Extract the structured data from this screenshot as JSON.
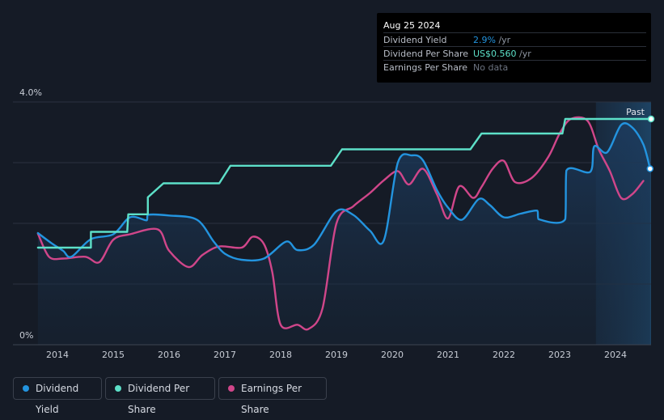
{
  "tooltip": {
    "date": "Aug 25 2024",
    "rows": [
      {
        "label": "Dividend Yield",
        "value": "2.9%",
        "unit": " /yr"
      },
      {
        "label": "Dividend Per Share",
        "value": "US$0.560",
        "unit": " /yr"
      },
      {
        "label": "Earnings Per Share",
        "value": "No data",
        "unit": ""
      }
    ]
  },
  "past_label": "Past",
  "legend": [
    {
      "label": "Dividend Yield",
      "color": "#2394df"
    },
    {
      "label": "Dividend Per Share",
      "color": "#5de0c8"
    },
    {
      "label": "Earnings Per Share",
      "color": "#d0468a"
    }
  ],
  "chart_data": {
    "type": "line",
    "xlim": [
      2013.58,
      2024.65
    ],
    "ylim": [
      0,
      4.0
    ],
    "y_tick_labels": [
      {
        "value": 4.0,
        "label": "4.0%"
      },
      {
        "value": 0,
        "label": "0%"
      }
    ],
    "x_ticks": [
      "2014",
      "2015",
      "2016",
      "2017",
      "2018",
      "2019",
      "2020",
      "2021",
      "2022",
      "2023",
      "2024"
    ],
    "forecast_start": 2023.65,
    "series": [
      {
        "name": "Dividend Yield",
        "color": "#2394df",
        "points": [
          [
            2013.65,
            1.84
          ],
          [
            2013.9,
            1.67
          ],
          [
            2014.1,
            1.55
          ],
          [
            2014.25,
            1.45
          ],
          [
            2014.6,
            1.74
          ],
          [
            2015.0,
            1.82
          ],
          [
            2015.3,
            2.1
          ],
          [
            2015.6,
            2.05
          ],
          [
            2015.62,
            2.14
          ],
          [
            2016.0,
            2.13
          ],
          [
            2016.5,
            2.06
          ],
          [
            2016.8,
            1.7
          ],
          [
            2017.0,
            1.5
          ],
          [
            2017.3,
            1.4
          ],
          [
            2017.7,
            1.42
          ],
          [
            2018.1,
            1.7
          ],
          [
            2018.3,
            1.56
          ],
          [
            2018.6,
            1.65
          ],
          [
            2019.0,
            2.2
          ],
          [
            2019.3,
            2.14
          ],
          [
            2019.6,
            1.88
          ],
          [
            2019.85,
            1.72
          ],
          [
            2020.1,
            3.0
          ],
          [
            2020.35,
            3.12
          ],
          [
            2020.55,
            3.04
          ],
          [
            2020.8,
            2.55
          ],
          [
            2021.0,
            2.26
          ],
          [
            2021.25,
            2.06
          ],
          [
            2021.55,
            2.4
          ],
          [
            2021.75,
            2.3
          ],
          [
            2022.0,
            2.1
          ],
          [
            2022.3,
            2.16
          ],
          [
            2022.6,
            2.21
          ],
          [
            2022.62,
            2.07
          ],
          [
            2023.1,
            2.07
          ],
          [
            2023.12,
            2.87
          ],
          [
            2023.55,
            2.85
          ],
          [
            2023.62,
            3.27
          ],
          [
            2023.85,
            3.17
          ],
          [
            2024.1,
            3.62
          ],
          [
            2024.3,
            3.58
          ],
          [
            2024.5,
            3.3
          ],
          [
            2024.62,
            2.9
          ]
        ]
      },
      {
        "name": "Dividend Per Share",
        "color": "#5de0c8",
        "points": [
          [
            2013.65,
            1.6
          ],
          [
            2014.6,
            1.6
          ],
          [
            2014.6,
            1.86
          ],
          [
            2015.25,
            1.86
          ],
          [
            2015.27,
            2.15
          ],
          [
            2015.62,
            2.15
          ],
          [
            2015.62,
            2.43
          ],
          [
            2015.9,
            2.66
          ],
          [
            2016.1,
            2.66
          ],
          [
            2016.9,
            2.66
          ],
          [
            2017.1,
            2.95
          ],
          [
            2017.5,
            2.95
          ],
          [
            2018.9,
            2.95
          ],
          [
            2019.1,
            3.22
          ],
          [
            2019.5,
            3.22
          ],
          [
            2021.4,
            3.22
          ],
          [
            2021.6,
            3.48
          ],
          [
            2022.0,
            3.48
          ],
          [
            2023.05,
            3.48
          ],
          [
            2023.1,
            3.72
          ],
          [
            2024.65,
            3.72
          ]
        ]
      },
      {
        "name": "Earnings Per Share",
        "color": "#d0468a",
        "points": [
          [
            2013.65,
            1.83
          ],
          [
            2013.85,
            1.45
          ],
          [
            2014.1,
            1.42
          ],
          [
            2014.5,
            1.45
          ],
          [
            2014.75,
            1.36
          ],
          [
            2015.0,
            1.73
          ],
          [
            2015.3,
            1.82
          ],
          [
            2015.8,
            1.9
          ],
          [
            2016.0,
            1.55
          ],
          [
            2016.35,
            1.28
          ],
          [
            2016.6,
            1.48
          ],
          [
            2016.9,
            1.62
          ],
          [
            2017.3,
            1.6
          ],
          [
            2017.5,
            1.78
          ],
          [
            2017.7,
            1.66
          ],
          [
            2017.85,
            1.2
          ],
          [
            2018.0,
            0.33
          ],
          [
            2018.3,
            0.33
          ],
          [
            2018.5,
            0.26
          ],
          [
            2018.75,
            0.6
          ],
          [
            2019.0,
            2.0
          ],
          [
            2019.3,
            2.28
          ],
          [
            2019.6,
            2.5
          ],
          [
            2019.85,
            2.71
          ],
          [
            2020.1,
            2.86
          ],
          [
            2020.3,
            2.64
          ],
          [
            2020.55,
            2.9
          ],
          [
            2020.8,
            2.48
          ],
          [
            2021.0,
            2.08
          ],
          [
            2021.2,
            2.61
          ],
          [
            2021.45,
            2.42
          ],
          [
            2021.6,
            2.6
          ],
          [
            2021.8,
            2.9
          ],
          [
            2022.0,
            3.03
          ],
          [
            2022.2,
            2.68
          ],
          [
            2022.5,
            2.75
          ],
          [
            2022.8,
            3.1
          ],
          [
            2023.0,
            3.48
          ],
          [
            2023.2,
            3.72
          ],
          [
            2023.5,
            3.69
          ],
          [
            2023.7,
            3.22
          ],
          [
            2023.9,
            2.86
          ],
          [
            2024.1,
            2.42
          ],
          [
            2024.3,
            2.48
          ],
          [
            2024.5,
            2.7
          ]
        ]
      }
    ]
  }
}
